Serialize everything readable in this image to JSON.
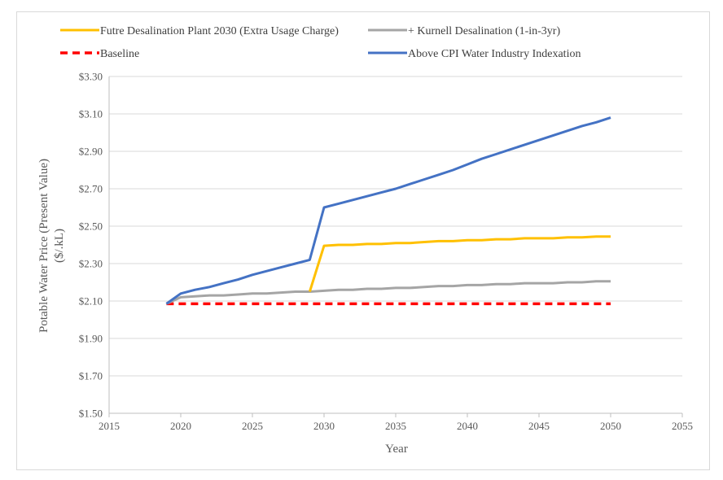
{
  "chart_data": {
    "type": "line",
    "title": "",
    "xlabel": "Year",
    "ylabel_line1": "Potable Water Price (Present Value)",
    "ylabel_line2": "($/.kL)",
    "xlim": [
      2015,
      2055
    ],
    "ylim": [
      1.5,
      3.3
    ],
    "x_ticks": [
      2015,
      2020,
      2025,
      2030,
      2035,
      2040,
      2045,
      2050,
      2055
    ],
    "x_tick_labels": [
      "2015",
      "2020",
      "2025",
      "2030",
      "2035",
      "2040",
      "2045",
      "2050",
      "2055"
    ],
    "y_ticks": [
      1.5,
      1.7,
      1.9,
      2.1,
      2.3,
      2.5,
      2.7,
      2.9,
      3.1,
      3.3
    ],
    "y_tick_labels": [
      "$1.50",
      "$1.70",
      "$1.90",
      "$2.10",
      "$2.30",
      "$2.50",
      "$2.70",
      "$2.90",
      "$3.10",
      "$3.30"
    ],
    "grid": "horizontal",
    "legend_position": "top",
    "series": [
      {
        "name": "Futre Desalination Plant 2030 (Extra Usage Charge)",
        "color": "#FFC000",
        "dashed": false,
        "x": [
          2029,
          2030,
          2031,
          2032,
          2033,
          2034,
          2035,
          2036,
          2037,
          2038,
          2039,
          2040,
          2041,
          2042,
          2043,
          2044,
          2045,
          2046,
          2047,
          2048,
          2049,
          2050
        ],
        "values": [
          2.15,
          2.395,
          2.4,
          2.4,
          2.405,
          2.405,
          2.41,
          2.41,
          2.415,
          2.42,
          2.42,
          2.425,
          2.425,
          2.43,
          2.43,
          2.435,
          2.435,
          2.435,
          2.44,
          2.44,
          2.445,
          2.445
        ]
      },
      {
        "name": "+ Kurnell Desalination (1-in-3yr)",
        "color": "#A5A5A5",
        "dashed": false,
        "x": [
          2019,
          2020,
          2021,
          2022,
          2023,
          2024,
          2025,
          2026,
          2027,
          2028,
          2029,
          2030,
          2031,
          2032,
          2033,
          2034,
          2035,
          2036,
          2037,
          2038,
          2039,
          2040,
          2041,
          2042,
          2043,
          2044,
          2045,
          2046,
          2047,
          2048,
          2049,
          2050
        ],
        "values": [
          2.085,
          2.12,
          2.125,
          2.13,
          2.13,
          2.135,
          2.14,
          2.14,
          2.145,
          2.15,
          2.15,
          2.155,
          2.16,
          2.16,
          2.165,
          2.165,
          2.17,
          2.17,
          2.175,
          2.18,
          2.18,
          2.185,
          2.185,
          2.19,
          2.19,
          2.195,
          2.195,
          2.195,
          2.2,
          2.2,
          2.205,
          2.205
        ]
      },
      {
        "name": "Baseline",
        "color": "#FF0000",
        "dashed": true,
        "x": [
          2019,
          2050
        ],
        "values": [
          2.085,
          2.085
        ]
      },
      {
        "name": "Above CPI Water Industry Indexation",
        "color": "#4472C4",
        "dashed": false,
        "x": [
          2019,
          2020,
          2021,
          2022,
          2023,
          2024,
          2025,
          2026,
          2027,
          2028,
          2029,
          2030,
          2031,
          2032,
          2033,
          2034,
          2035,
          2036,
          2037,
          2038,
          2039,
          2040,
          2041,
          2042,
          2043,
          2044,
          2045,
          2046,
          2047,
          2048,
          2049,
          2050
        ],
        "values": [
          2.085,
          2.14,
          2.16,
          2.175,
          2.195,
          2.215,
          2.24,
          2.26,
          2.28,
          2.3,
          2.32,
          2.6,
          2.62,
          2.64,
          2.66,
          2.68,
          2.7,
          2.725,
          2.75,
          2.775,
          2.8,
          2.83,
          2.86,
          2.885,
          2.91,
          2.935,
          2.96,
          2.985,
          3.01,
          3.035,
          3.055,
          3.08
        ]
      }
    ]
  }
}
